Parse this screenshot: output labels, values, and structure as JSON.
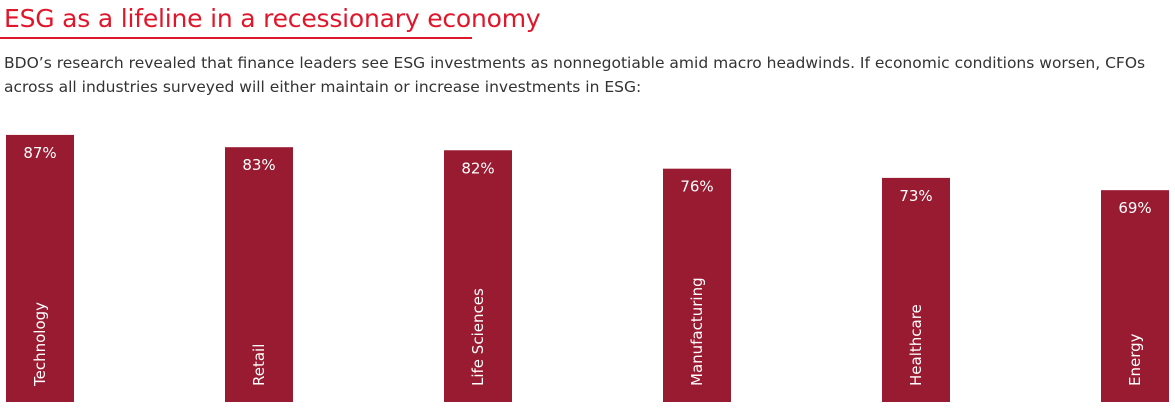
{
  "chart_data": {
    "type": "bar",
    "title": "ESG as a lifeline in a recessionary economy",
    "subtitle": "BDO’s research revealed that finance leaders see ESG investments as nonnegotiable amid macro headwinds. If economic conditions worsen, CFOs across all industries surveyed will either maintain or increase investments in ESG:",
    "categories": [
      "Technology",
      "Retail",
      "Life Sciences",
      "Manufacturing",
      "Healthcare",
      "Energy"
    ],
    "values": [
      87,
      83,
      82,
      76,
      73,
      69
    ],
    "value_labels": [
      "87%",
      "83%",
      "82%",
      "76%",
      "73%",
      "69%"
    ],
    "color": "#981b31"
  }
}
